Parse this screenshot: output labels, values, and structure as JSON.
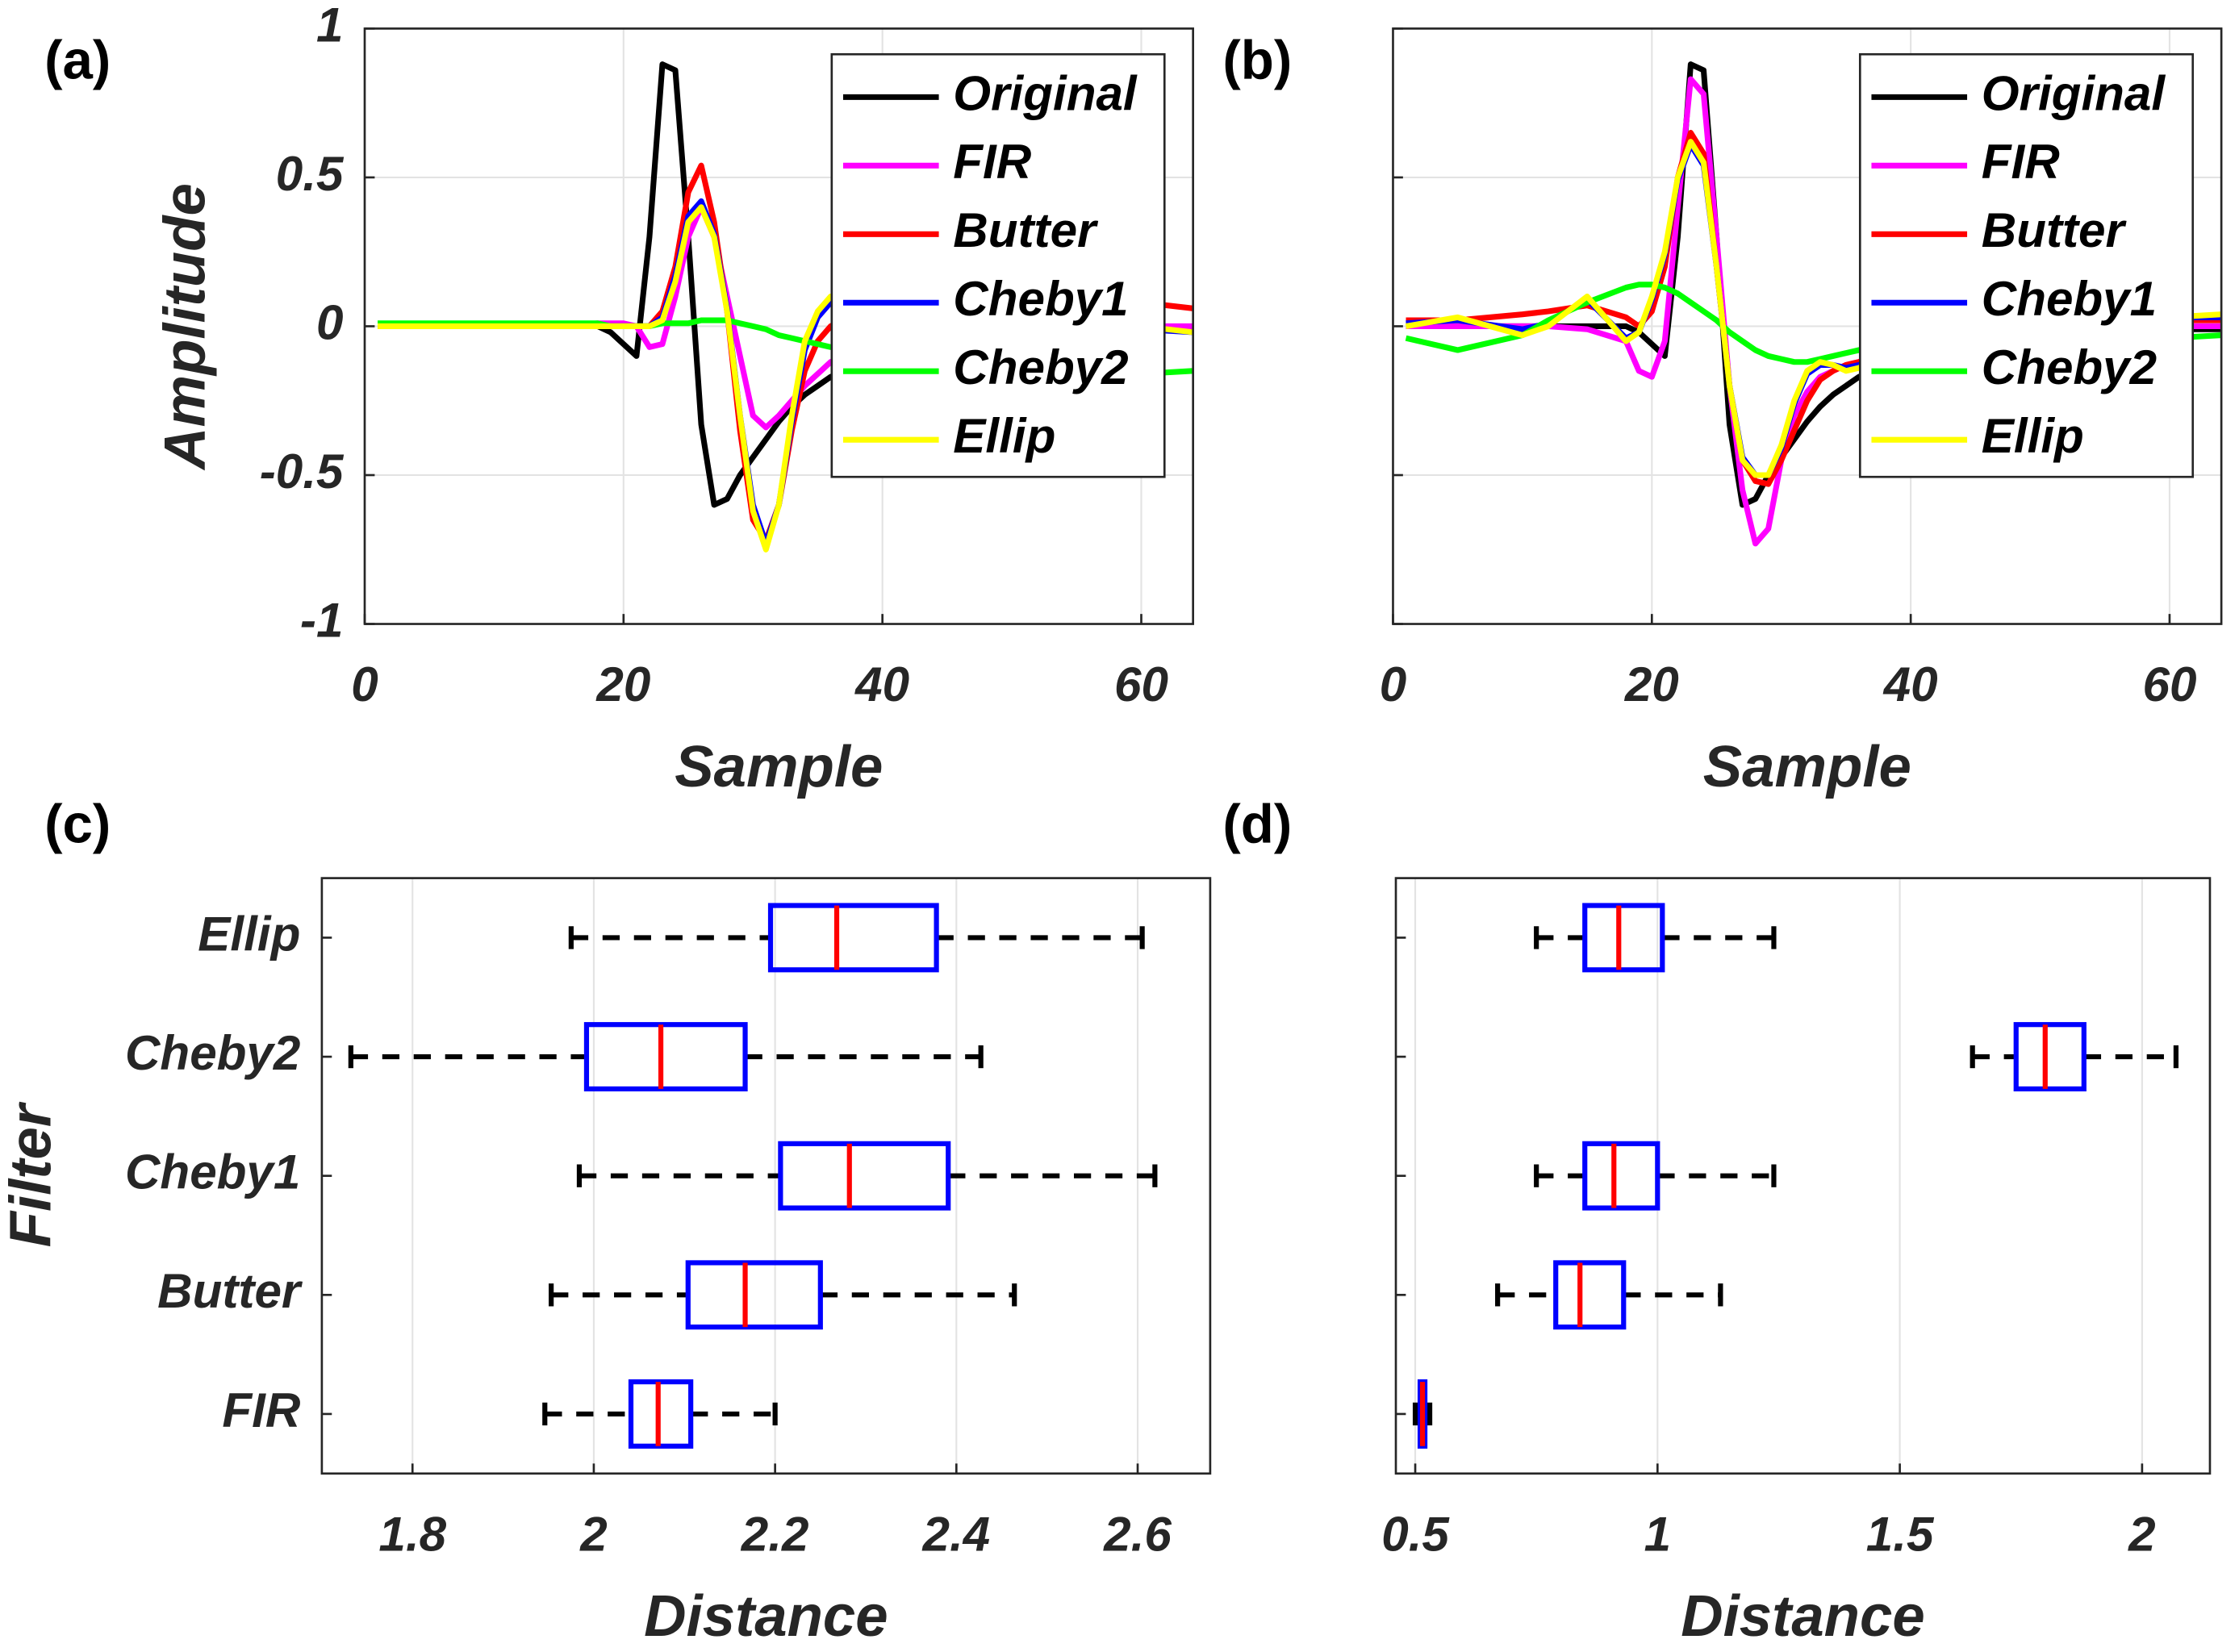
{
  "chart_data": [
    {
      "type": "line",
      "panel_label": "(a)",
      "xlabel": "Sample",
      "ylabel": "Amplitude",
      "xlim": [
        0,
        64
      ],
      "ylim": [
        -1,
        1
      ],
      "xticks": [
        0,
        20,
        40,
        60
      ],
      "yticks": [
        -1,
        -0.5,
        0,
        0.5,
        1
      ],
      "ytick_labels": true,
      "grid": true,
      "legend": "northeast",
      "x": [
        1,
        5,
        10,
        12,
        15,
        18,
        19,
        20,
        21,
        22,
        23,
        24,
        25,
        26,
        27,
        28,
        29,
        30,
        31,
        32,
        33,
        34,
        35,
        36,
        38,
        40,
        45,
        50,
        55,
        60,
        64
      ],
      "series": [
        {
          "name": "Original",
          "color": "#000000",
          "values": [
            0,
            0,
            0,
            0,
            0,
            0,
            -0.02,
            -0.06,
            -0.1,
            0.3,
            0.88,
            0.86,
            0.3,
            -0.33,
            -0.6,
            -0.58,
            -0.5,
            -0.44,
            -0.38,
            -0.32,
            -0.27,
            -0.23,
            -0.2,
            -0.17,
            -0.13,
            -0.09,
            -0.05,
            -0.03,
            -0.02,
            -0.01,
            -0.01
          ]
        },
        {
          "name": "FIR",
          "color": "#ff00ff",
          "values": [
            0,
            0,
            0,
            0,
            0,
            0.01,
            0.01,
            0.01,
            0,
            -0.07,
            -0.06,
            0.1,
            0.3,
            0.4,
            0.3,
            0.1,
            -0.1,
            -0.3,
            -0.34,
            -0.3,
            -0.25,
            -0.2,
            -0.16,
            -0.12,
            -0.08,
            -0.05,
            -0.03,
            -0.02,
            -0.01,
            0,
            0
          ]
        },
        {
          "name": "Butter",
          "color": "#ff0000",
          "values": [
            0,
            0,
            0,
            0,
            0,
            0,
            0,
            0,
            0,
            0,
            0.05,
            0.2,
            0.45,
            0.54,
            0.35,
            0.05,
            -0.35,
            -0.65,
            -0.72,
            -0.6,
            -0.35,
            -0.15,
            -0.05,
            0,
            0.05,
            0.08,
            0.1,
            0.1,
            0.09,
            0.08,
            0.06
          ]
        },
        {
          "name": "Cheby1",
          "color": "#0000ff",
          "values": [
            0,
            0,
            0,
            0,
            0,
            0,
            0,
            0,
            0,
            0,
            0.03,
            0.17,
            0.37,
            0.42,
            0.31,
            0.06,
            -0.3,
            -0.6,
            -0.73,
            -0.6,
            -0.32,
            -0.08,
            0.03,
            0.08,
            0.07,
            0.05,
            0.02,
            0,
            0,
            -0.01,
            -0.02
          ]
        },
        {
          "name": "Cheby2",
          "color": "#00ff00",
          "values": [
            0.01,
            0.01,
            0.01,
            0.01,
            0.01,
            0.01,
            0,
            0,
            0,
            0,
            0.01,
            0.01,
            0.01,
            0.02,
            0.02,
            0.02,
            0.01,
            0,
            -0.01,
            -0.03,
            -0.04,
            -0.05,
            -0.06,
            -0.07,
            -0.08,
            -0.1,
            -0.13,
            -0.15,
            -0.16,
            -0.16,
            -0.15
          ]
        },
        {
          "name": "Ellip",
          "color": "#ffff00",
          "values": [
            0,
            0,
            0,
            0,
            0,
            0,
            0,
            0,
            0,
            0,
            0.02,
            0.15,
            0.35,
            0.4,
            0.3,
            0.05,
            -0.3,
            -0.62,
            -0.75,
            -0.6,
            -0.3,
            -0.05,
            0.05,
            0.1,
            0.08,
            0.05,
            0.02,
            0,
            0,
            0,
            -0.02
          ]
        }
      ]
    },
    {
      "type": "line",
      "panel_label": "(b)",
      "xlabel": "Sample",
      "xlim": [
        0,
        64
      ],
      "ylim": [
        -1,
        1
      ],
      "xticks": [
        0,
        20,
        40,
        60
      ],
      "yticks": [
        -1,
        -0.5,
        0,
        0.5,
        1
      ],
      "ytick_labels": false,
      "grid": true,
      "legend": "northeast",
      "x": [
        1,
        5,
        10,
        12,
        15,
        18,
        19,
        20,
        21,
        22,
        23,
        24,
        25,
        26,
        27,
        28,
        29,
        30,
        31,
        32,
        33,
        34,
        35,
        36,
        38,
        40,
        45,
        50,
        55,
        60,
        64
      ],
      "series": [
        {
          "name": "Original",
          "color": "#000000",
          "values": [
            0,
            0,
            0,
            0,
            0,
            0,
            -0.02,
            -0.06,
            -0.1,
            0.3,
            0.88,
            0.86,
            0.3,
            -0.33,
            -0.6,
            -0.58,
            -0.5,
            -0.44,
            -0.38,
            -0.32,
            -0.27,
            -0.23,
            -0.2,
            -0.17,
            -0.13,
            -0.09,
            -0.05,
            -0.03,
            -0.02,
            -0.01,
            -0.01
          ]
        },
        {
          "name": "FIR",
          "color": "#ff00ff",
          "values": [
            0,
            0,
            0,
            0,
            -0.01,
            -0.05,
            -0.15,
            -0.17,
            -0.05,
            0.4,
            0.83,
            0.78,
            0.3,
            -0.2,
            -0.55,
            -0.73,
            -0.68,
            -0.45,
            -0.3,
            -0.22,
            -0.17,
            -0.15,
            -0.13,
            -0.12,
            -0.09,
            -0.06,
            -0.03,
            -0.01,
            0,
            0,
            0
          ]
        },
        {
          "name": "Butter",
          "color": "#ff0000",
          "values": [
            0.02,
            0.02,
            0.04,
            0.05,
            0.07,
            0.03,
            0,
            0.05,
            0.2,
            0.5,
            0.65,
            0.58,
            0.2,
            -0.2,
            -0.45,
            -0.52,
            -0.53,
            -0.45,
            -0.35,
            -0.25,
            -0.18,
            -0.15,
            -0.13,
            -0.12,
            -0.08,
            -0.05,
            -0.02,
            0,
            0.01,
            0.02,
            0.02
          ]
        },
        {
          "name": "Cheby1",
          "color": "#0000ff",
          "values": [
            0.01,
            0.02,
            -0.01,
            0.01,
            0.09,
            -0.04,
            -0.02,
            0.09,
            0.24,
            0.49,
            0.61,
            0.54,
            0.2,
            -0.2,
            -0.44,
            -0.5,
            -0.5,
            -0.41,
            -0.26,
            -0.16,
            -0.13,
            -0.13,
            -0.14,
            -0.13,
            -0.1,
            -0.06,
            -0.03,
            0,
            0.02,
            0.03,
            0.03
          ]
        },
        {
          "name": "Cheby2",
          "color": "#00ff00",
          "values": [
            -0.04,
            -0.08,
            -0.03,
            0.02,
            0.08,
            0.13,
            0.14,
            0.14,
            0.13,
            0.11,
            0.08,
            0.05,
            0.02,
            -0.02,
            -0.05,
            -0.08,
            -0.1,
            -0.11,
            -0.12,
            -0.12,
            -0.11,
            -0.1,
            -0.09,
            -0.08,
            -0.06,
            -0.04,
            -0.02,
            -0.02,
            -0.03,
            -0.04,
            -0.03
          ]
        },
        {
          "name": "Ellip",
          "color": "#ffff00",
          "values": [
            0,
            0.03,
            -0.03,
            0,
            0.1,
            -0.05,
            -0.02,
            0.1,
            0.25,
            0.5,
            0.62,
            0.55,
            0.2,
            -0.2,
            -0.45,
            -0.5,
            -0.5,
            -0.4,
            -0.25,
            -0.15,
            -0.12,
            -0.13,
            -0.15,
            -0.14,
            -0.1,
            -0.06,
            -0.03,
            0,
            0.02,
            0.03,
            0.04
          ]
        }
      ]
    },
    {
      "type": "box",
      "panel_label": "(c)",
      "xlabel": "Distance",
      "ylabel": "Filter",
      "xlim": [
        1.7,
        2.68
      ],
      "xticks": [
        1.8,
        2,
        2.2,
        2.4,
        2.6
      ],
      "grid": true,
      "box_color": "#0000ff",
      "median_color": "#ff0000",
      "whisker_color": "#000000",
      "categories": [
        "FIR",
        "Butter",
        "Cheby1",
        "Cheby2",
        "Ellip"
      ],
      "boxes": [
        {
          "min": 1.946,
          "q1": 2.041,
          "median": 2.071,
          "q3": 2.107,
          "max": 2.2
        },
        {
          "min": 1.953,
          "q1": 2.104,
          "median": 2.167,
          "q3": 2.25,
          "max": 2.464
        },
        {
          "min": 1.984,
          "q1": 2.206,
          "median": 2.282,
          "q3": 2.391,
          "max": 2.619
        },
        {
          "min": 1.732,
          "q1": 1.992,
          "median": 2.074,
          "q3": 2.167,
          "max": 2.427
        },
        {
          "min": 1.975,
          "q1": 2.195,
          "median": 2.268,
          "q3": 2.378,
          "max": 2.605
        }
      ]
    },
    {
      "type": "box",
      "panel_label": "(d)",
      "xlabel": "Distance",
      "xlim": [
        0.46,
        2.14
      ],
      "xticks": [
        0.5,
        1,
        1.5,
        2
      ],
      "grid": true,
      "box_color": "#0000ff",
      "median_color": "#ff0000",
      "whisker_color": "#000000",
      "categories": [
        null,
        null,
        null,
        null,
        null
      ],
      "boxes": [
        {
          "min": 0.5,
          "q1": 0.51,
          "median": 0.515,
          "q3": 0.52,
          "max": 0.53
        },
        {
          "min": 0.67,
          "q1": 0.79,
          "median": 0.84,
          "q3": 0.93,
          "max": 1.13
        },
        {
          "min": 0.75,
          "q1": 0.85,
          "median": 0.91,
          "q3": 1.0,
          "max": 1.24
        },
        {
          "min": 1.65,
          "q1": 1.74,
          "median": 1.8,
          "q3": 1.88,
          "max": 2.07
        },
        {
          "min": 0.75,
          "q1": 0.85,
          "median": 0.92,
          "q3": 1.01,
          "max": 1.24
        }
      ]
    }
  ]
}
